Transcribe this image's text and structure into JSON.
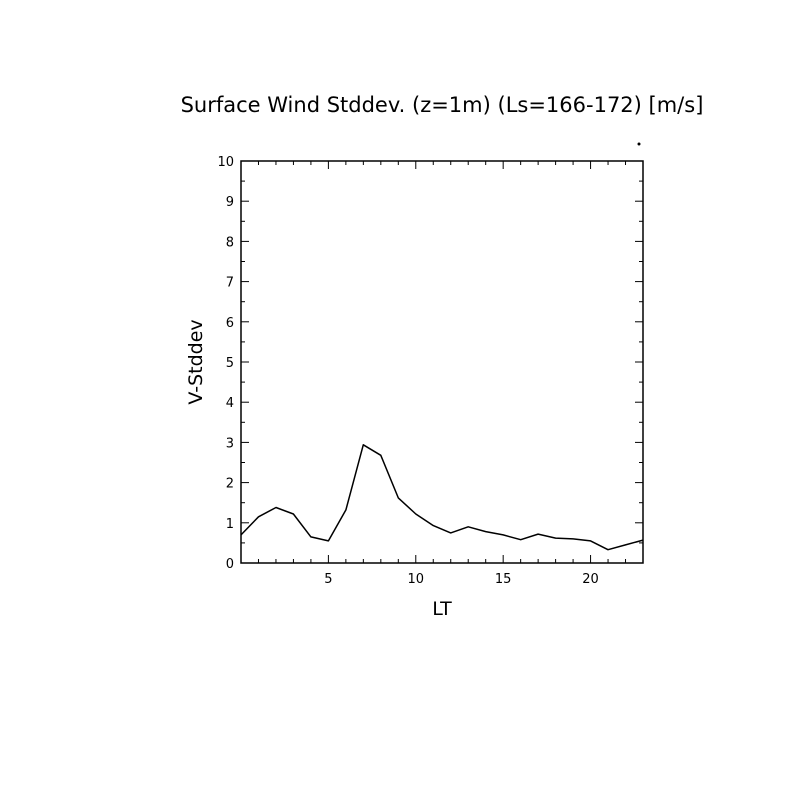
{
  "chart_data": {
    "type": "line",
    "title": "Surface Wind Stddev. (z=1m) (Ls=166-172) [m/s]",
    "xlabel": "LT",
    "ylabel": "V-Stddev",
    "xlim": [
      0,
      23
    ],
    "ylim": [
      0,
      10
    ],
    "x_ticks": [
      "5",
      "10",
      "15",
      "20"
    ],
    "y_ticks": [
      "0",
      "1",
      "2",
      "3",
      "4",
      "5",
      "6",
      "7",
      "8",
      "9",
      "10"
    ],
    "grid": false,
    "series": [
      {
        "x": [
          0,
          1,
          2,
          3,
          4,
          5,
          6,
          7,
          8,
          9,
          10,
          11,
          12,
          13,
          14,
          15,
          16,
          17,
          18,
          19,
          20,
          21,
          22,
          23
        ],
        "values": [
          0.7,
          1.15,
          1.38,
          1.22,
          0.65,
          0.55,
          1.32,
          2.94,
          2.68,
          1.62,
          1.22,
          0.93,
          0.75,
          0.9,
          0.78,
          0.7,
          0.58,
          0.72,
          0.62,
          0.6,
          0.55,
          0.33,
          0.45,
          0.57
        ]
      }
    ],
    "colors": {
      "line": "#000000",
      "axes": "#000000"
    }
  }
}
